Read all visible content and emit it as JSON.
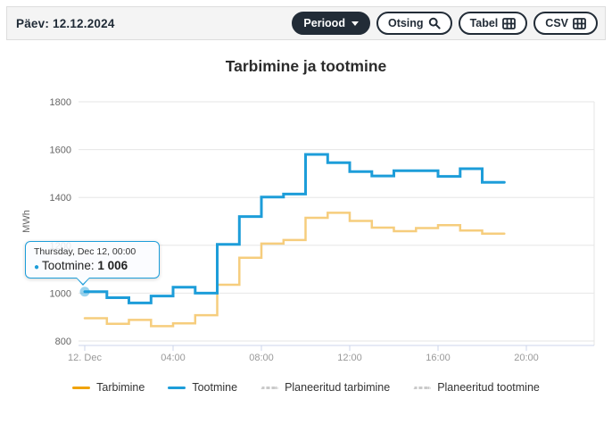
{
  "toolbar": {
    "day_label": "Päev:",
    "date": "12.12.2024",
    "buttons": {
      "periood": "Periood",
      "otsing": "Otsing",
      "tabel": "Tabel",
      "csv": "CSV"
    }
  },
  "chart": {
    "title": "Tarbimine ja tootmine",
    "y_axis_title": "MWh"
  },
  "tooltip": {
    "header": "Thursday, Dec 12, 00:00",
    "series": "Tootmine",
    "value": "1 006"
  },
  "legend": [
    {
      "label": "Tarbimine",
      "color": "#f0a30a",
      "style": "solid"
    },
    {
      "label": "Tootmine",
      "color": "#1d9dd9",
      "style": "solid"
    },
    {
      "label": "Planeeritud tarbimine",
      "color": "#c9c9c9",
      "style": "dotted"
    },
    {
      "label": "Planeeritud tootmine",
      "color": "#c9c9c9",
      "style": "dotted"
    }
  ],
  "colors": {
    "accent_blue": "#1d9dd9",
    "accent_orange": "#f0a30a",
    "chart_yellow": "#f6cd7d",
    "gridline": "#e6e6e6",
    "axis_line": "#ccd6eb",
    "x_label": "#999999",
    "y_label": "#666666",
    "toolbar_dark": "#222c37"
  },
  "chart_data": {
    "type": "line",
    "step": true,
    "title": "Tarbimine ja tootmine",
    "xlabel": "",
    "ylabel": "MWh",
    "ylim": [
      800,
      1800
    ],
    "yticks": [
      800,
      1000,
      1200,
      1400,
      1600,
      1800
    ],
    "xlim_hours": [
      0,
      23
    ],
    "xticks": [
      {
        "hour": 0,
        "label": "12. Dec"
      },
      {
        "hour": 4,
        "label": "04:00"
      },
      {
        "hour": 8,
        "label": "08:00"
      },
      {
        "hour": 12,
        "label": "12:00"
      },
      {
        "hour": 16,
        "label": "16:00"
      },
      {
        "hour": 20,
        "label": "20:00"
      }
    ],
    "hours": [
      0,
      1,
      2,
      3,
      4,
      5,
      6,
      7,
      8,
      9,
      10,
      11,
      12,
      13,
      14,
      15,
      16,
      17,
      18
    ],
    "series": [
      {
        "name": "Tarbimine",
        "color": "#f6cd7d",
        "line_width": 2.5,
        "values": [
          895,
          872,
          888,
          862,
          874,
          908,
          1035,
          1148,
          1207,
          1222,
          1315,
          1336,
          1302,
          1274,
          1259,
          1272,
          1284,
          1262,
          1249
        ]
      },
      {
        "name": "Tootmine",
        "color": "#1d9dd9",
        "line_width": 3,
        "values": [
          1006,
          981,
          959,
          988,
          1025,
          1000,
          1204,
          1320,
          1402,
          1414,
          1580,
          1545,
          1508,
          1490,
          1512,
          1512,
          1488,
          1520,
          1463
        ]
      }
    ],
    "planned_series": [
      {
        "name": "Planeeritud tarbimine",
        "style": "dotted",
        "visible_on_plot": false
      },
      {
        "name": "Planeeritud tootmine",
        "style": "dotted",
        "visible_on_plot": false
      }
    ],
    "highlight_point": {
      "series": "Tootmine",
      "hour": 0,
      "value": 1006
    },
    "legend_position": "bottom",
    "grid": "horizontal"
  }
}
